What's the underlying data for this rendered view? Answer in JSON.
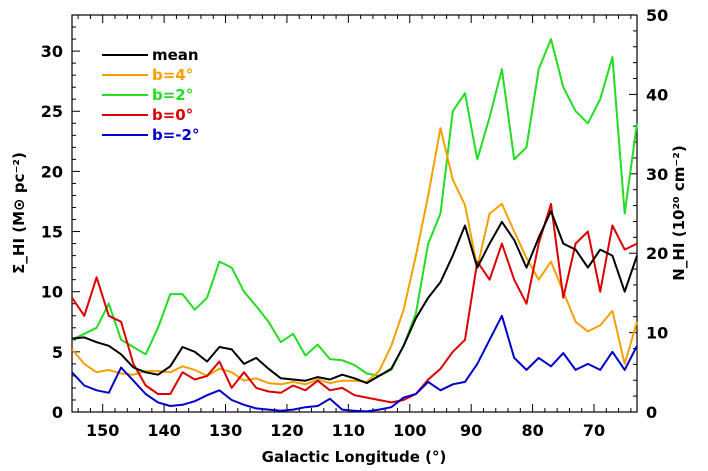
{
  "chart_data": {
    "type": "line",
    "xlabel": "Galactic Longitude (°)",
    "ylabel": "Σ_HI (M⊙ pc⁻²)",
    "y2label": "N_HI (10²⁰ cm⁻²)",
    "xlim": [
      155,
      63
    ],
    "ylim": [
      0,
      33
    ],
    "y2lim": [
      0,
      50
    ],
    "x_ticks": [
      "150",
      "140",
      "130",
      "120",
      "110",
      "100",
      "90",
      "80",
      "70"
    ],
    "y_ticks": [
      "0",
      "5",
      "10",
      "15",
      "20",
      "25",
      "30"
    ],
    "y2_ticks": [
      "0",
      "10",
      "20",
      "30",
      "40",
      "50"
    ],
    "legend_position": "top-left",
    "grid": false,
    "colors": {
      "mean": "#000000",
      "b4": "#f5a000",
      "b2": "#22dd22",
      "b0": "#dd0000",
      "bm2": "#0000cc"
    },
    "series": [
      {
        "name": "mean",
        "color": "#000000",
        "x": [
          155,
          153,
          151,
          149,
          147,
          145,
          143,
          141,
          139,
          137,
          135,
          133,
          131,
          129,
          127,
          125,
          123,
          121,
          119,
          117,
          115,
          113,
          111,
          109,
          107,
          105,
          103,
          101,
          99,
          97,
          95,
          93,
          91,
          89,
          87,
          85,
          83,
          81,
          79,
          77,
          75,
          73,
          71,
          69,
          67,
          65,
          63
        ],
        "values": [
          6.1,
          6.2,
          5.8,
          5.5,
          4.8,
          3.7,
          3.3,
          3.1,
          3.8,
          5.4,
          5.0,
          4.2,
          5.4,
          5.2,
          4.0,
          4.5,
          3.6,
          2.8,
          2.7,
          2.6,
          2.9,
          2.7,
          3.1,
          2.8,
          2.4,
          3.0,
          3.6,
          5.5,
          7.8,
          9.5,
          10.8,
          13.0,
          15.5,
          12.0,
          14.0,
          15.8,
          14.3,
          12.0,
          14.5,
          16.7,
          14.0,
          13.5,
          12.0,
          13.5,
          13.0,
          10.0,
          13.0
        ]
      },
      {
        "name": "b=4°",
        "color": "#f5a000",
        "x": [
          155,
          153,
          151,
          149,
          147,
          145,
          143,
          141,
          139,
          137,
          135,
          133,
          131,
          129,
          127,
          125,
          123,
          121,
          119,
          117,
          115,
          113,
          111,
          109,
          107,
          105,
          103,
          101,
          99,
          97,
          95,
          93,
          91,
          89,
          87,
          85,
          83,
          81,
          79,
          77,
          75,
          73,
          71,
          69,
          67,
          65,
          63
        ],
        "values": [
          5.2,
          4.0,
          3.3,
          3.5,
          3.2,
          3.1,
          3.4,
          3.4,
          3.3,
          3.8,
          3.5,
          3.0,
          3.6,
          3.3,
          2.6,
          2.8,
          2.4,
          2.3,
          2.5,
          2.3,
          2.7,
          2.4,
          2.6,
          2.6,
          2.5,
          3.4,
          5.5,
          8.5,
          13.0,
          18.0,
          23.6,
          19.3,
          17.2,
          12.0,
          16.5,
          17.3,
          15.0,
          12.8,
          11.0,
          12.5,
          10.0,
          7.5,
          6.7,
          7.2,
          8.4,
          4.0,
          7.5
        ]
      },
      {
        "name": "b=2°",
        "color": "#22dd22",
        "x": [
          155,
          153,
          151,
          149,
          147,
          145,
          143,
          141,
          139,
          137,
          135,
          133,
          131,
          129,
          127,
          125,
          123,
          121,
          119,
          117,
          115,
          113,
          111,
          109,
          107,
          105,
          103,
          101,
          99,
          97,
          95,
          93,
          91,
          89,
          87,
          85,
          83,
          81,
          79,
          77,
          75,
          73,
          71,
          69,
          67,
          65,
          63
        ],
        "values": [
          6.0,
          6.5,
          7.0,
          9.0,
          6.0,
          5.4,
          4.8,
          7.0,
          9.8,
          9.8,
          8.5,
          9.5,
          12.5,
          12.0,
          10.0,
          8.8,
          7.5,
          5.8,
          6.5,
          4.7,
          5.6,
          4.4,
          4.3,
          3.9,
          3.2,
          3.0,
          3.5,
          5.5,
          8.2,
          14.0,
          16.5,
          25.0,
          26.5,
          21.0,
          24.5,
          28.5,
          21.0,
          22.0,
          28.5,
          31.0,
          27.0,
          25.0,
          24.0,
          26.0,
          29.5,
          16.5,
          24.0
        ]
      },
      {
        "name": "b=0°",
        "color": "#dd0000",
        "x": [
          155,
          153,
          151,
          149,
          147,
          145,
          143,
          141,
          139,
          137,
          135,
          133,
          131,
          129,
          127,
          125,
          123,
          121,
          119,
          117,
          115,
          113,
          111,
          109,
          107,
          105,
          103,
          101,
          99,
          97,
          95,
          93,
          91,
          89,
          87,
          85,
          83,
          81,
          79,
          77,
          75,
          73,
          71,
          69,
          67,
          65,
          63
        ],
        "values": [
          9.5,
          8.0,
          11.2,
          8.0,
          7.5,
          4.0,
          2.2,
          1.5,
          1.5,
          3.3,
          2.7,
          3.0,
          4.2,
          2.0,
          3.3,
          2.0,
          1.7,
          1.6,
          2.2,
          1.8,
          2.6,
          1.8,
          2.0,
          1.4,
          1.2,
          1.0,
          0.8,
          1.0,
          1.5,
          2.7,
          3.6,
          5.0,
          6.0,
          12.5,
          11.0,
          14.0,
          11.0,
          9.0,
          14.0,
          17.3,
          9.5,
          14.0,
          15.0,
          10.0,
          15.5,
          13.5,
          14.0
        ]
      },
      {
        "name": "b=-2°",
        "color": "#0000cc",
        "x": [
          155,
          153,
          151,
          149,
          147,
          145,
          143,
          141,
          139,
          137,
          135,
          133,
          131,
          129,
          127,
          125,
          123,
          121,
          119,
          117,
          115,
          113,
          111,
          109,
          107,
          105,
          103,
          101,
          99,
          97,
          95,
          93,
          91,
          89,
          87,
          85,
          83,
          81,
          79,
          77,
          75,
          73,
          71,
          69,
          67,
          65,
          63
        ],
        "values": [
          3.3,
          2.2,
          1.8,
          1.6,
          3.7,
          2.6,
          1.5,
          0.8,
          0.5,
          0.6,
          0.9,
          1.4,
          1.8,
          1.0,
          0.6,
          0.3,
          0.2,
          0.1,
          0.2,
          0.4,
          0.5,
          1.1,
          0.2,
          0.1,
          0.05,
          0.2,
          0.4,
          1.2,
          1.5,
          2.5,
          1.8,
          2.3,
          2.5,
          4.0,
          6.0,
          8.0,
          4.5,
          3.5,
          4.5,
          3.8,
          4.9,
          3.5,
          4.0,
          3.5,
          5.0,
          3.5,
          5.5
        ]
      }
    ]
  }
}
